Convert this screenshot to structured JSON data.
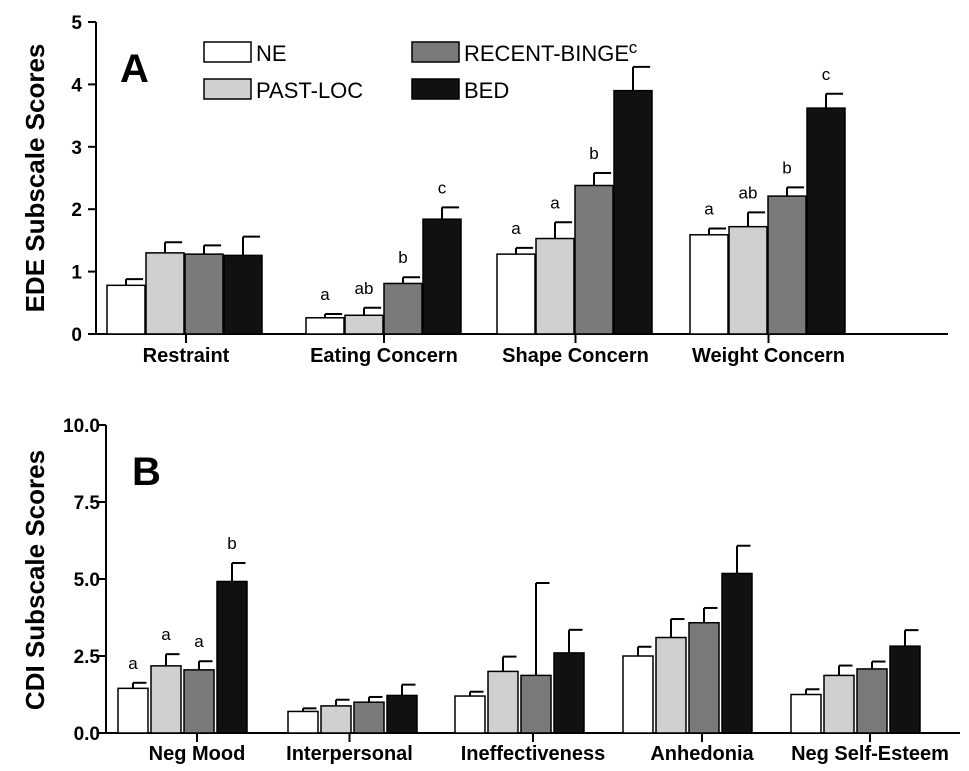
{
  "series_styles": [
    {
      "name": "NE",
      "fill": "#ffffff"
    },
    {
      "name": "PAST-LOC",
      "fill": "#d0d0d0"
    },
    {
      "name": "RECENT-BINGE",
      "fill": "#7a7a7a"
    },
    {
      "name": "BED",
      "fill": "#111111"
    }
  ],
  "chart_data": [
    {
      "type": "bar",
      "panel": "A",
      "ylabel": "EDE Subscale Scores",
      "ylim": [
        0,
        5
      ],
      "yticks": [
        "0",
        "1",
        "2",
        "3",
        "4",
        "5"
      ],
      "categories": [
        "Restraint",
        "Eating Concern",
        "Shape Concern",
        "Weight Concern"
      ],
      "legend": [
        "NE",
        "RECENT-BINGE",
        "PAST-LOC",
        "BED"
      ],
      "series": [
        {
          "name": "NE",
          "values": [
            0.78,
            0.26,
            1.28,
            1.59
          ],
          "errors": [
            0.1,
            0.06,
            0.1,
            0.1
          ]
        },
        {
          "name": "PAST-LOC",
          "values": [
            1.3,
            0.3,
            1.53,
            1.72
          ],
          "errors": [
            0.17,
            0.12,
            0.26,
            0.23
          ]
        },
        {
          "name": "RECENT-BINGE",
          "values": [
            1.28,
            0.81,
            2.38,
            2.21
          ],
          "errors": [
            0.14,
            0.1,
            0.2,
            0.14
          ]
        },
        {
          "name": "BED",
          "values": [
            1.26,
            1.84,
            3.9,
            3.62
          ],
          "errors": [
            0.3,
            0.19,
            0.38,
            0.23
          ]
        }
      ],
      "annotations": [
        [
          "",
          "a",
          "a",
          "a"
        ],
        [
          "",
          "ab",
          "a",
          "ab"
        ],
        [
          "",
          "b",
          "b",
          "b"
        ],
        [
          "",
          "c",
          "c",
          "c"
        ]
      ]
    },
    {
      "type": "bar",
      "panel": "B",
      "ylabel": "CDI Subscale Scores",
      "ylim": [
        0,
        10
      ],
      "yticks": [
        "0.0",
        "2.5",
        "5.0",
        "7.5",
        "10.0"
      ],
      "categories": [
        "Neg Mood",
        "Interpersonal",
        "Ineffectiveness",
        "Anhedonia",
        "Neg Self-Esteem"
      ],
      "series": [
        {
          "name": "NE",
          "values": [
            1.45,
            0.7,
            1.2,
            2.5,
            1.25
          ],
          "errors": [
            0.18,
            0.1,
            0.14,
            0.3,
            0.17
          ]
        },
        {
          "name": "PAST-LOC",
          "values": [
            2.18,
            0.88,
            2.0,
            3.1,
            1.87
          ],
          "errors": [
            0.38,
            0.2,
            0.48,
            0.6,
            0.32
          ]
        },
        {
          "name": "RECENT-BINGE",
          "values": [
            2.05,
            1.0,
            1.87,
            3.58,
            2.08
          ],
          "errors": [
            0.28,
            0.17,
            3.0,
            0.48,
            0.24
          ]
        },
        {
          "name": "BED",
          "values": [
            4.92,
            1.22,
            2.6,
            5.18,
            2.82
          ],
          "errors": [
            0.6,
            0.35,
            0.75,
            0.9,
            0.52
          ]
        }
      ],
      "annotations": [
        [
          "a",
          "",
          "",
          "",
          ""
        ],
        [
          "a",
          "",
          "",
          "",
          ""
        ],
        [
          "a",
          "",
          "",
          "",
          ""
        ],
        [
          "b",
          "",
          "",
          "",
          ""
        ]
      ]
    }
  ]
}
